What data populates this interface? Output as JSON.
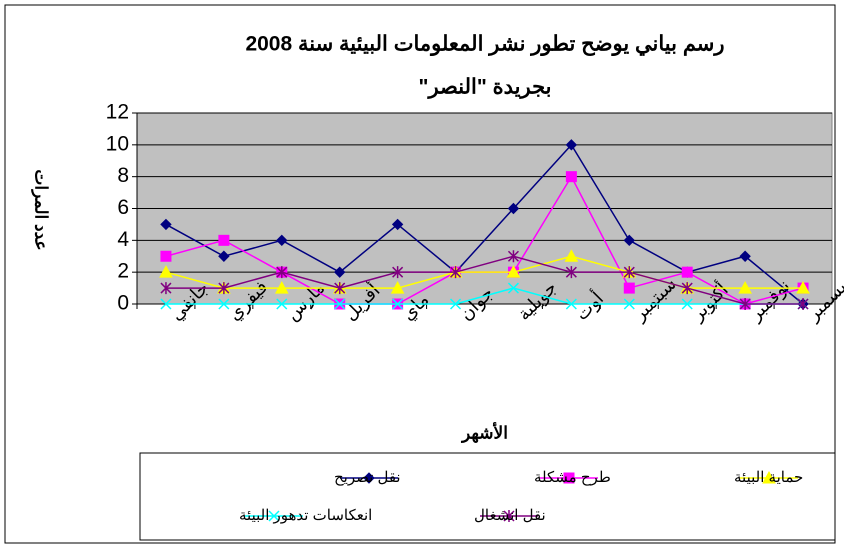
{
  "chart_data": {
    "type": "line",
    "title": "رسم بياني يوضح تطور نشر المعلومات البيئية سنة 2008",
    "subtitle": "بجريدة \"النصر\"",
    "x_label": "الأشهر",
    "y_label": "عدد المرات",
    "categories": [
      "جانفي",
      "فيفري",
      "مارس",
      "أفريل",
      "ماي",
      "جوان",
      "جويلية",
      "أوت",
      "سبتمبر",
      "أكتوبر",
      "نوفمبر",
      "ديسمبر"
    ],
    "series": [
      {
        "name": "نقل تصريح",
        "color": "#000080",
        "marker": "diamond",
        "values": [
          5,
          3,
          4,
          2,
          5,
          2,
          6,
          10,
          4,
          2,
          3,
          0
        ]
      },
      {
        "name": "طرح مشكلة",
        "color": "#ff00ff",
        "marker": "square",
        "values": [
          3,
          4,
          2,
          0,
          0,
          2,
          2,
          8,
          1,
          2,
          0,
          1
        ]
      },
      {
        "name": "حماية البيئة",
        "color": "#ffff00",
        "marker": "triangle",
        "values": [
          2,
          1,
          1,
          1,
          1,
          2,
          2,
          3,
          2,
          1,
          1,
          1
        ]
      },
      {
        "name": "انعكاسات تدهور البيئة",
        "color": "#00ffff",
        "marker": "x",
        "values": [
          0,
          0,
          0,
          0,
          0,
          0,
          1,
          0,
          0,
          0,
          0,
          0
        ]
      },
      {
        "name": "نقل انشغال",
        "color": "#800080",
        "marker": "star",
        "values": [
          1,
          1,
          2,
          1,
          2,
          2,
          3,
          2,
          2,
          1,
          0,
          0
        ]
      }
    ],
    "ylim": [
      0,
      12
    ],
    "yticks": [
      0,
      2,
      4,
      6,
      8,
      10,
      12
    ],
    "grid": true,
    "plot_background": "#c0c0c0"
  }
}
